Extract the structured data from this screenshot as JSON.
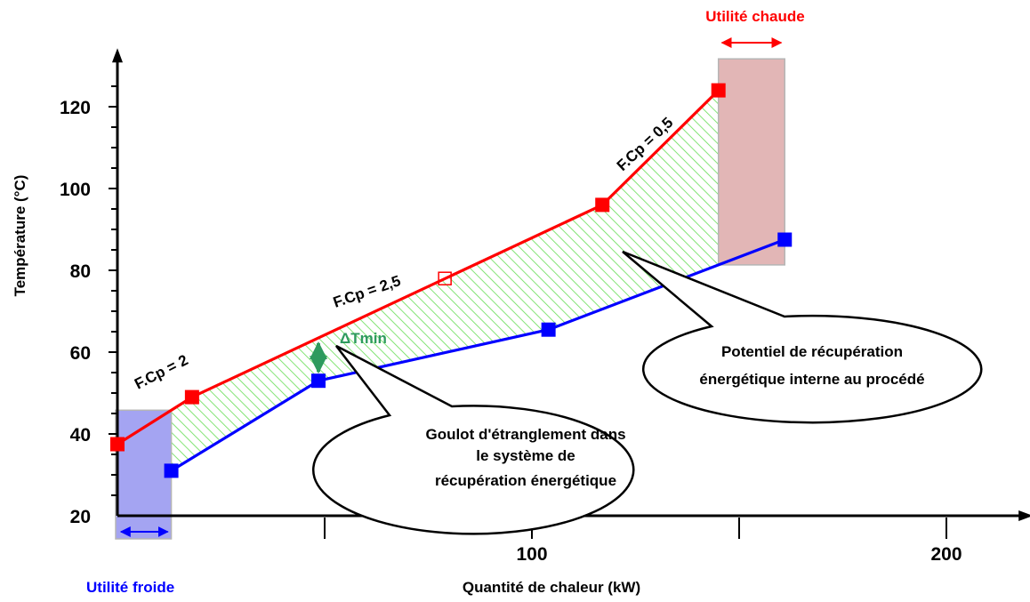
{
  "chart_data": {
    "type": "line",
    "xlabel": "Quantité de chaleur (kW)",
    "ylabel": "Température (°C)",
    "xlim": [
      -2,
      220
    ],
    "ylim": [
      20,
      133
    ],
    "x_ticks": [
      50,
      100,
      150,
      200
    ],
    "x_tick_labels": [
      "",
      "100",
      "",
      "200"
    ],
    "y_ticks": [
      20,
      40,
      60,
      80,
      100,
      120
    ],
    "y_tick_labels": [
      "20",
      "40",
      "60",
      "80",
      "100",
      "120"
    ],
    "series": [
      {
        "color": "#ff0000",
        "points": [
          [
            0,
            37.5
          ],
          [
            18,
            49
          ],
          [
            117,
            96
          ],
          [
            145,
            124
          ]
        ],
        "open_points": [
          [
            79,
            78
          ]
        ]
      },
      {
        "color": "#0000ff",
        "points": [
          [
            13,
            31
          ],
          [
            48.5,
            53
          ],
          [
            104,
            65.5
          ],
          [
            161,
            87.5
          ]
        ],
        "open_points": []
      }
    ],
    "annotations": {
      "fcp_2": "F.Cp = 2",
      "fcp_25": "F.Cp = 2,5",
      "fcp_05": "F.Cp = 0,5",
      "dtmin": "ΔTmin",
      "cold_utility": "Utilité froide",
      "hot_utility": "Utilité chaude",
      "bubble_goulot": [
        "Goulot d'étranglement dans",
        "le système de",
        "récupération énergétique"
      ],
      "bubble_potentiel": [
        "Potentiel de récupération",
        "énergétique interne au procédé"
      ]
    },
    "colors": {
      "hot": "#ff0000",
      "cold": "#0000ff",
      "hatch": "#66dd55",
      "dtmin": "#2e9a5e",
      "cold_utility_fill": "#a4a4f2",
      "hot_utility_fill": "#e2b6b6"
    },
    "grid": false,
    "legend": "none"
  }
}
